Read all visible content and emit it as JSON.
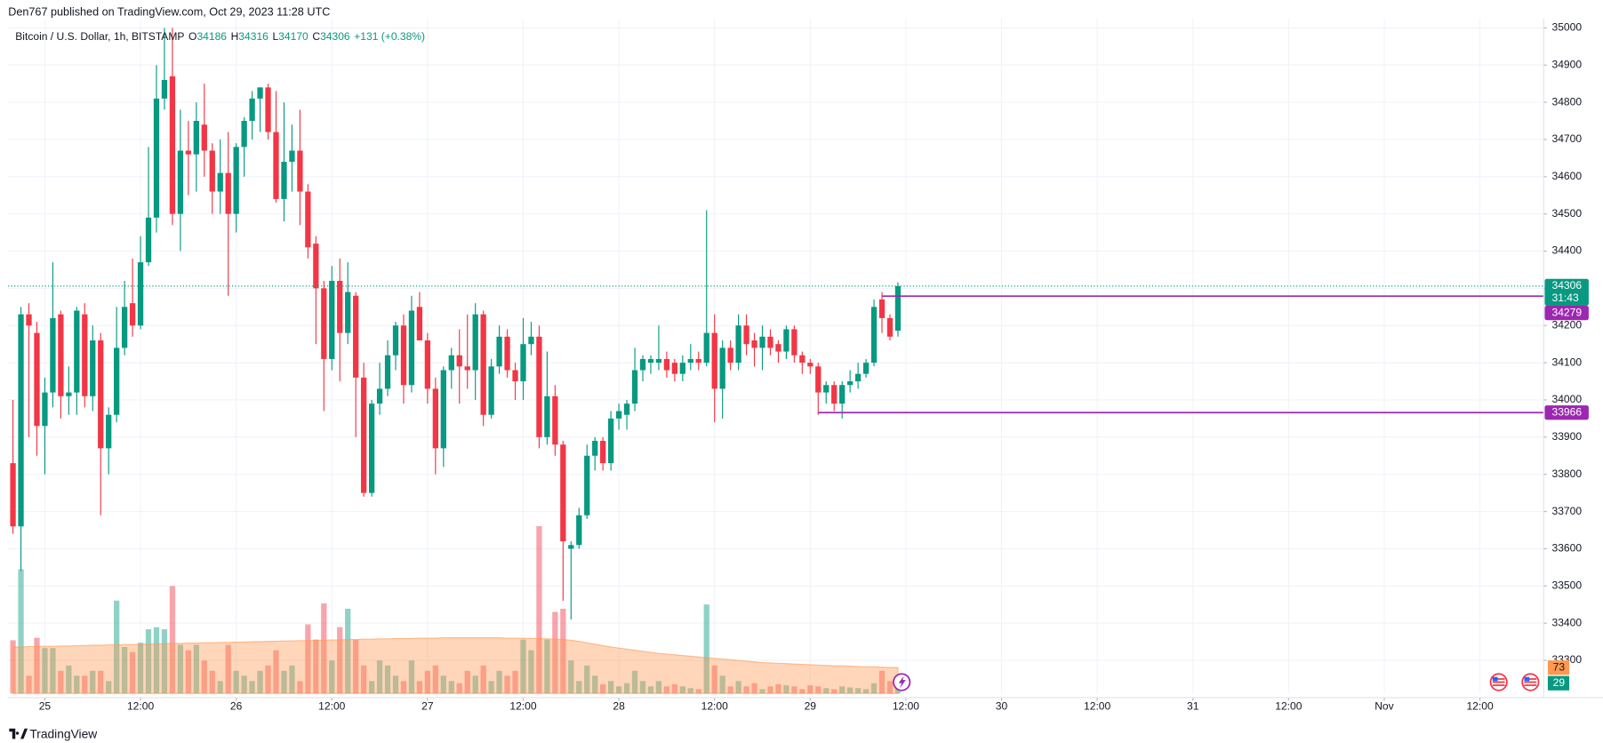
{
  "header": {
    "published": "Den767 published on TradingView.com, Oct 29, 2023 11:28 UTC"
  },
  "footer": {
    "brand": "TradingView"
  },
  "chart_data": {
    "type": "candlestick",
    "title": "Bitcoin / U.S. Dollar, 1h, BITSTAMP",
    "ohlc_labels": [
      "O",
      "H",
      "L",
      "C"
    ],
    "change": "+131 (+0.38%)",
    "countdown": "31:43",
    "up_color": "#089981",
    "down_color": "#f23645",
    "open": [
      33830,
      33660,
      34230,
      34180,
      33930,
      34020,
      34230,
      34010,
      34020,
      34230,
      34010,
      34160,
      33870,
      33960,
      34140,
      34260,
      34200,
      34370,
      34490,
      34810,
      34870,
      34500,
      34670,
      34660,
      34740,
      34670,
      34560,
      34610,
      34500,
      34680,
      34750,
      34810,
      34840,
      34720,
      34540,
      34640,
      34670,
      34560,
      34420,
      34300,
      34110,
      34320,
      34180,
      34280,
      34060,
      33750,
      33990,
      34030,
      34120,
      34200,
      34040,
      34250,
      34160,
      34030,
      33870,
      34080,
      34120,
      34090,
      34080,
      34230,
      33960,
      34090,
      34170,
      34080,
      34050,
      34150,
      34170,
      33900,
      34010,
      33880,
      33600,
      33610,
      33690,
      33850,
      33890,
      33830,
      33950,
      33960,
      33990,
      34080,
      34100,
      34100,
      34110,
      34100,
      34070,
      34100,
      34110,
      34100,
      34180,
      34030,
      34140,
      34100,
      34200,
      34160,
      34140,
      34170,
      34150,
      34130,
      34190,
      34120,
      34100,
      34090,
      34020,
      34040,
      33990,
      34040,
      34050,
      34070,
      34100,
      34270,
      34220,
      34186
    ],
    "high": [
      34000,
      34250,
      34260,
      34210,
      34060,
      34370,
      34240,
      34090,
      34250,
      34260,
      34200,
      34180,
      33980,
      34250,
      34320,
      34380,
      34440,
      34680,
      34900,
      35000,
      35000,
      34780,
      34750,
      34800,
      34850,
      34690,
      34700,
      34720,
      34690,
      34760,
      34830,
      34840,
      34850,
      34830,
      34800,
      34740,
      34780,
      34580,
      34440,
      34320,
      34360,
      34380,
      34370,
      34290,
      34100,
      34000,
      34100,
      34160,
      34210,
      34230,
      34280,
      34290,
      34180,
      34060,
      34090,
      34140,
      34190,
      34230,
      34260,
      34240,
      34110,
      34200,
      34190,
      34100,
      34220,
      34210,
      34200,
      34130,
      34040,
      33890,
      33620,
      33710,
      33880,
      33900,
      33900,
      33970,
      33990,
      34000,
      34140,
      34120,
      34120,
      34200,
      34130,
      34110,
      34120,
      34150,
      34130,
      34510,
      34230,
      34160,
      34160,
      34230,
      34230,
      34180,
      34200,
      34190,
      34160,
      34200,
      34200,
      34130,
      34110,
      34100,
      34050,
      34050,
      34050,
      34080,
      34100,
      34110,
      34270,
      34290,
      34230,
      34316
    ],
    "low": [
      33640,
      33540,
      33900,
      33850,
      33800,
      33980,
      33950,
      33960,
      33960,
      33980,
      33970,
      33690,
      33800,
      33940,
      34120,
      34170,
      34190,
      34360,
      34450,
      34780,
      34470,
      34400,
      34550,
      34560,
      34600,
      34500,
      34500,
      34280,
      34450,
      34600,
      34700,
      34720,
      34700,
      34530,
      34480,
      34560,
      34470,
      34380,
      34150,
      33970,
      34080,
      34050,
      34150,
      33900,
      33740,
      33740,
      33960,
      34010,
      34080,
      33990,
      34020,
      34160,
      33990,
      33800,
      33820,
      34030,
      33990,
      34030,
      34000,
      33930,
      33950,
      34070,
      34060,
      34000,
      34000,
      34120,
      33870,
      33880,
      33850,
      33460,
      33410,
      33600,
      33680,
      33810,
      33810,
      33810,
      33920,
      33920,
      33970,
      34050,
      34070,
      34080,
      34060,
      34050,
      34050,
      34080,
      34080,
      34090,
      33940,
      33950,
      34080,
      34080,
      34120,
      34090,
      34080,
      34120,
      34100,
      34110,
      34100,
      34070,
      34070,
      33960,
      33990,
      33970,
      33950,
      34020,
      34030,
      34060,
      34090,
      34180,
      34160,
      34170
    ],
    "close": [
      33660,
      34230,
      34200,
      33930,
      34020,
      34220,
      34010,
      34020,
      34240,
      34010,
      34160,
      33870,
      33960,
      34140,
      34250,
      34200,
      34370,
      34490,
      34810,
      34860,
      34500,
      34670,
      34660,
      34750,
      34670,
      34560,
      34610,
      34500,
      34680,
      34750,
      34810,
      34840,
      34720,
      34540,
      34640,
      34670,
      34560,
      34410,
      34300,
      34110,
      34320,
      34180,
      34290,
      34060,
      33750,
      33990,
      34030,
      34120,
      34200,
      34040,
      34240,
      34160,
      34030,
      33870,
      34080,
      34120,
      34090,
      34080,
      34230,
      33960,
      34090,
      34170,
      34080,
      34050,
      34150,
      34170,
      33900,
      34010,
      33880,
      33620,
      33610,
      33690,
      33850,
      33890,
      33830,
      33950,
      33970,
      33990,
      34080,
      34110,
      34110,
      34110,
      34080,
      34070,
      34100,
      34110,
      34100,
      34180,
      34030,
      34140,
      34100,
      34200,
      34150,
      34140,
      34170,
      34140,
      34130,
      34190,
      34120,
      34100,
      34090,
      34020,
      34040,
      33990,
      34040,
      34050,
      34070,
      34100,
      34250,
      34220,
      34170,
      34306
    ],
    "volume": [
      150,
      350,
      50,
      157,
      128,
      128,
      64,
      79,
      50,
      50,
      64,
      64,
      35,
      262,
      131,
      117,
      143,
      181,
      187,
      181,
      303,
      137,
      122,
      137,
      93,
      64,
      35,
      137,
      64,
      50,
      35,
      64,
      79,
      122,
      64,
      79,
      35,
      195,
      152,
      254,
      93,
      187,
      239,
      152,
      79,
      35,
      93,
      79,
      50,
      35,
      93,
      35,
      64,
      79,
      50,
      35,
      29,
      64,
      50,
      79,
      35,
      64,
      50,
      64,
      152,
      122,
      472,
      152,
      230,
      239,
      93,
      35,
      79,
      50,
      26,
      35,
      20,
      29,
      64,
      35,
      20,
      35,
      20,
      26,
      20,
      15,
      12,
      251,
      79,
      50,
      20,
      35,
      20,
      29,
      12,
      20,
      26,
      23,
      20,
      12,
      23,
      20,
      15,
      12,
      20,
      17,
      15,
      12,
      29,
      64,
      35,
      29
    ],
    "volume_ma": [
      131,
      131,
      132,
      132,
      133,
      133,
      134,
      134,
      135,
      135,
      136,
      136,
      137,
      137,
      138,
      138,
      139,
      139,
      140,
      140,
      141,
      141,
      142,
      142,
      143,
      143,
      144,
      144,
      145,
      145,
      146,
      146,
      147,
      147,
      148,
      148,
      149,
      149,
      150,
      150,
      151,
      151,
      152,
      152,
      153,
      153,
      154,
      154,
      155,
      155,
      155,
      156,
      156,
      156,
      157,
      157,
      157,
      157,
      157,
      157,
      157,
      157,
      156,
      156,
      156,
      155,
      155,
      154,
      153,
      152,
      150,
      147,
      143,
      139,
      135,
      131,
      128,
      125,
      122,
      119,
      116,
      113,
      111,
      109,
      107,
      105,
      103,
      101,
      99,
      97,
      95,
      93,
      91,
      89,
      87,
      86,
      85,
      84,
      83,
      82,
      81,
      80,
      79,
      78,
      78,
      77,
      76,
      75,
      75,
      74,
      73,
      73
    ],
    "volume_ma_color": "#ff9850",
    "levels": [
      {
        "value": 34279,
        "start": 109,
        "color": "#9c27b0"
      },
      {
        "value": 33966,
        "start": 101,
        "color": "#9c27b0"
      }
    ],
    "ylim": [
      33211,
      35025
    ],
    "yticks": [
      33300,
      33400,
      33500,
      33600,
      33700,
      33800,
      33900,
      34000,
      34100,
      34200,
      34300,
      34400,
      34500,
      34600,
      34700,
      34800,
      34900,
      35000
    ],
    "xlim": [
      -0.6,
      192
    ],
    "xticks": [
      {
        "value": 4,
        "label": "25"
      },
      {
        "value": 16,
        "label": "12:00"
      },
      {
        "value": 28,
        "label": "26"
      },
      {
        "value": 40,
        "label": "12:00"
      },
      {
        "value": 52,
        "label": "27"
      },
      {
        "value": 64,
        "label": "12:00"
      },
      {
        "value": 76,
        "label": "28"
      },
      {
        "value": 88,
        "label": "12:00"
      },
      {
        "value": 100,
        "label": "29"
      },
      {
        "value": 112,
        "label": "12:00"
      },
      {
        "value": 124,
        "label": "30"
      },
      {
        "value": 136,
        "label": "12:00"
      },
      {
        "value": 148,
        "label": "31"
      },
      {
        "value": 160,
        "label": "12:00"
      },
      {
        "value": 172,
        "label": "Nov"
      },
      {
        "value": 184,
        "label": "12:00"
      }
    ],
    "grid": true
  }
}
